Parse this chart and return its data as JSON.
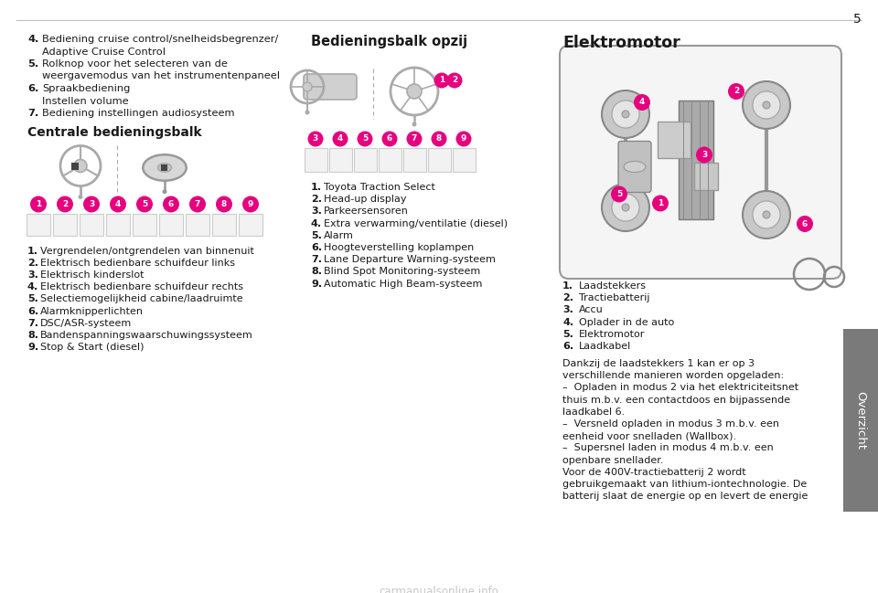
{
  "page_number": "5",
  "sidebar_text": "Overzicht",
  "bg_color": "#ffffff",
  "sidebar_color": "#7a7a7a",
  "magenta": "#e6007e",
  "text_color": "#1a1a1a",
  "line_color": "#bbbbbb",
  "top_list": [
    [
      "4.",
      "Bediening cruise control/snelheidsbegrenzer/",
      "Adaptive Cruise Control"
    ],
    [
      "5.",
      "Rolknop voor het selecteren van de",
      "weergavemodus van het instrumentenpaneel"
    ],
    [
      "6.",
      "Spraakbediening",
      "Instellen volume"
    ],
    [
      "7.",
      "Bediening instellingen audiosysteem",
      ""
    ]
  ],
  "centrale_title": "Centrale bedieningsbalk",
  "centrale_items": [
    {
      "num": "1.",
      "text": "Vergrendelen/ontgrendelen van binnenuit"
    },
    {
      "num": "2.",
      "text": "Elektrisch bedienbare schuifdeur links"
    },
    {
      "num": "3.",
      "text": "Elektrisch kinderslot"
    },
    {
      "num": "4.",
      "text": "Elektrisch bedienbare schuifdeur rechts"
    },
    {
      "num": "5.",
      "text": "Selectiemogelijkheid cabine/laadruimte"
    },
    {
      "num": "6.",
      "text": "Alarmknipperlichten"
    },
    {
      "num": "7.",
      "text": "DSC/ASR-systeem"
    },
    {
      "num": "8.",
      "text": "Bandenspanningswaarschuwingssysteem"
    },
    {
      "num": "9.",
      "text": "Stop & Start (diesel)"
    }
  ],
  "bediening_title": "Bedieningsbalk opzij",
  "bediening_items": [
    {
      "num": "1.",
      "text": "Toyota Traction Select"
    },
    {
      "num": "2.",
      "text": "Head-up display"
    },
    {
      "num": "3.",
      "text": "Parkeersensoren"
    },
    {
      "num": "4.",
      "text": "Extra verwarming/ventilatie (diesel)"
    },
    {
      "num": "5.",
      "text": "Alarm"
    },
    {
      "num": "6.",
      "text": "Hoogteverstelling koplampen"
    },
    {
      "num": "7.",
      "text": "Lane Departure Warning-systeem"
    },
    {
      "num": "8.",
      "text": "Blind Spot Monitoring-systeem"
    },
    {
      "num": "9.",
      "text": "Automatic High Beam-systeem"
    }
  ],
  "elektro_title": "Elektromotor",
  "elektro_items": [
    {
      "num": "1.",
      "text": "Laadstekkers"
    },
    {
      "num": "2.",
      "text": "Tractiebatterij"
    },
    {
      "num": "3.",
      "text": "Accu"
    },
    {
      "num": "4.",
      "text": "Oplader in de auto"
    },
    {
      "num": "5.",
      "text": "Elektromotor"
    },
    {
      "num": "6.",
      "text": "Laadkabel"
    }
  ],
  "elektro_body": [
    "Dankzij de laadstekkers 1 kan er op 3",
    "verschillende manieren worden opgeladen:",
    "–  Opladen in modus 2 via het elektriciteitsnet",
    "thuis m.b.v. een contactdoos en bijpassende",
    "laadkabel 6.",
    "–  Versneld opladen in modus 3 m.b.v. een",
    "eenheid voor snelladen (Wallbox).",
    "–  Supersnel laden in modus 4 m.b.v. een",
    "openbare snellader.",
    "Voor de 400V-tractiebatterij 2 wordt",
    "gebruikgemaakt van lithium-iontechnologie. De",
    "batterij slaat de energie op en levert de energie"
  ],
  "watermark": "carmanualsonline.info"
}
